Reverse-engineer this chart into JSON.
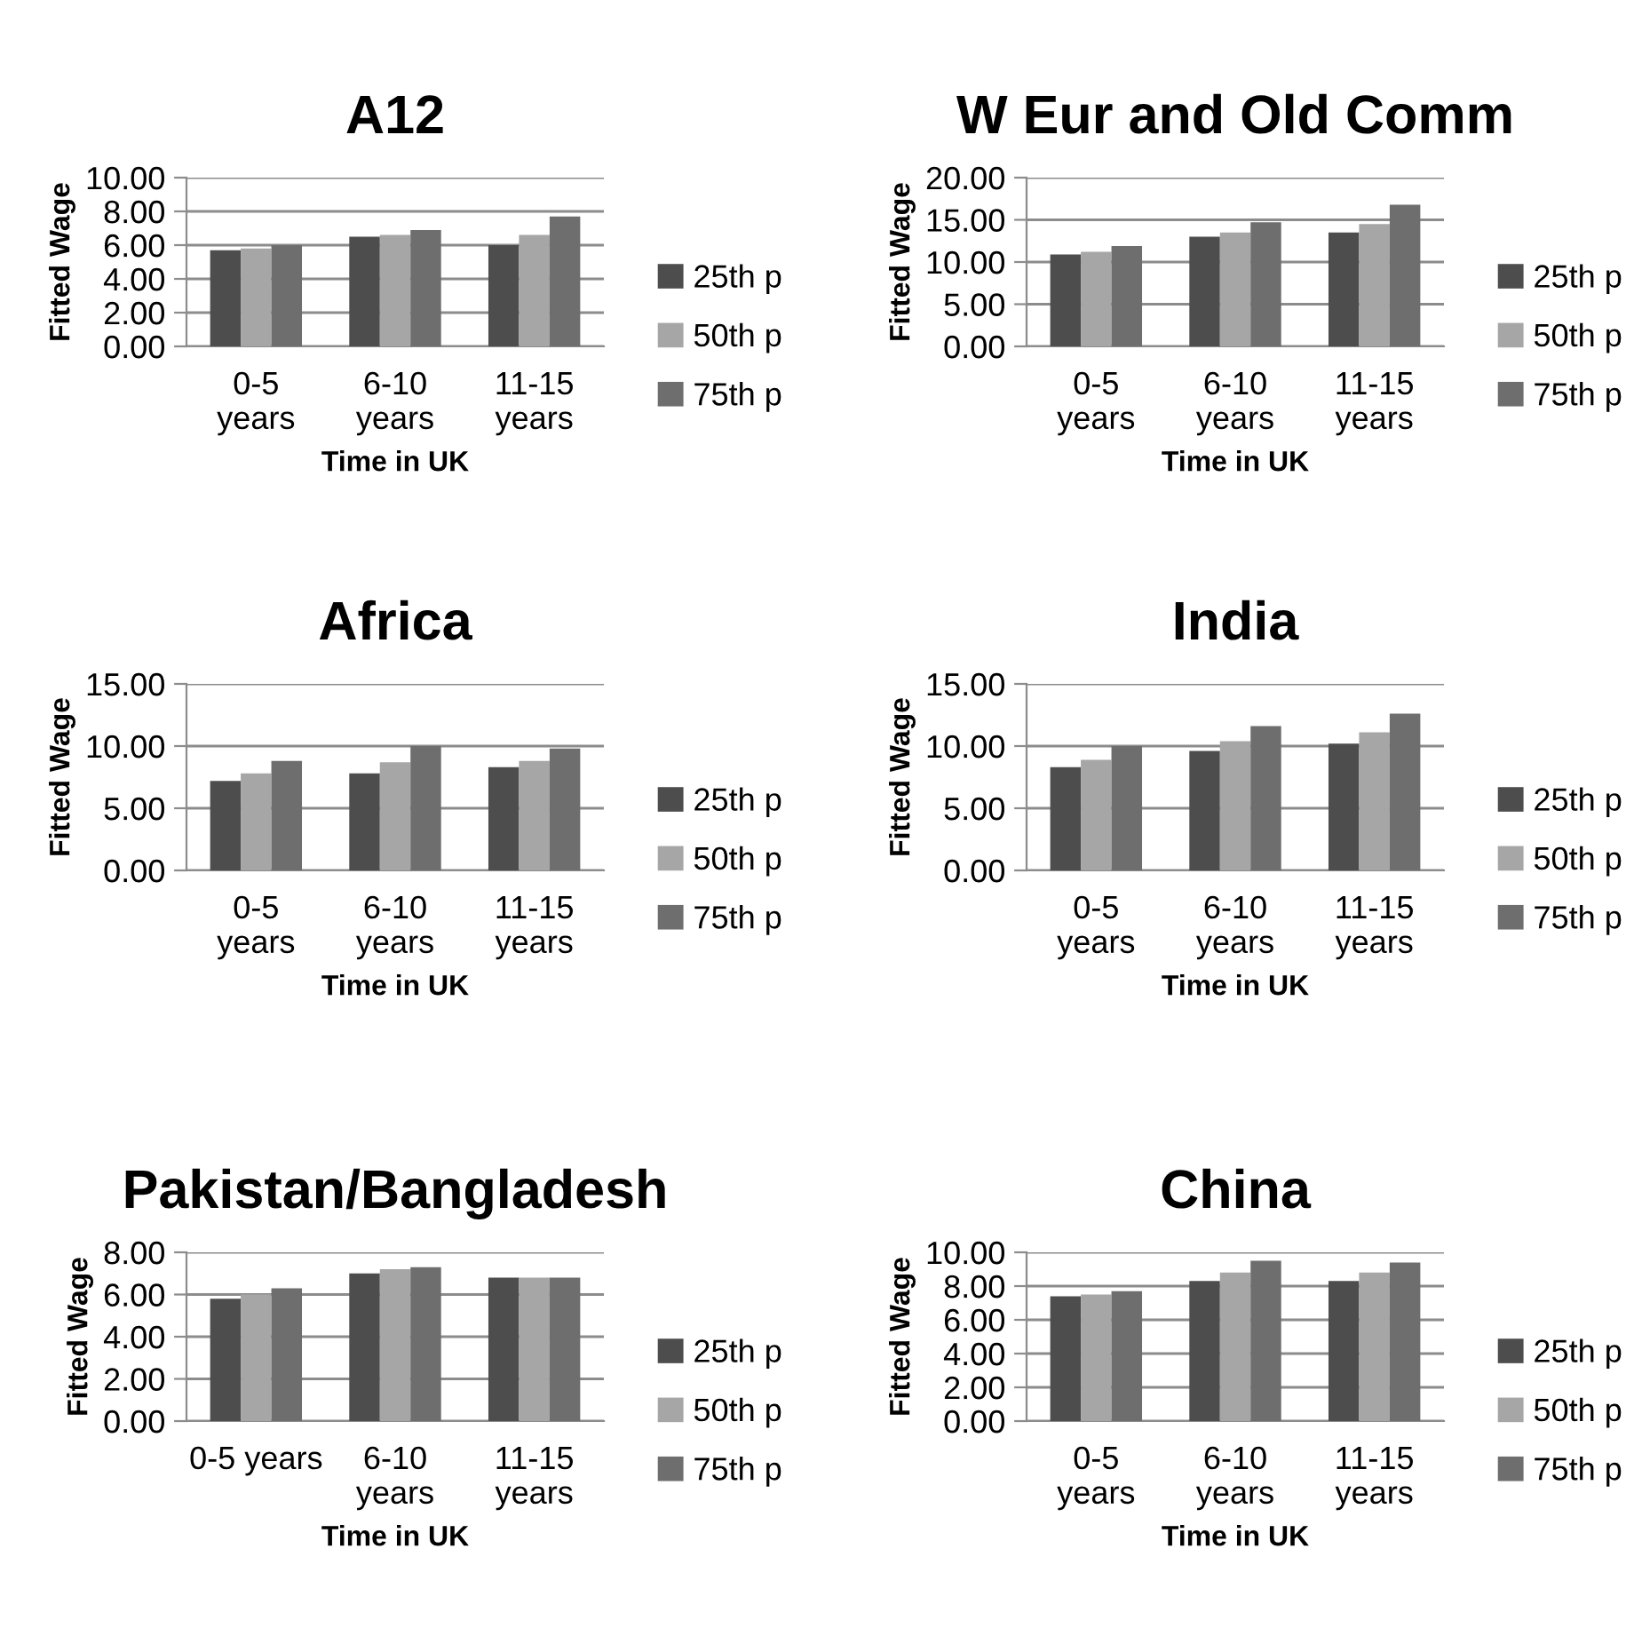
{
  "chart_data": [
    {
      "type": "bar",
      "title": "A12",
      "xlabel": "Time in UK",
      "ylabel": "Fitted Wage",
      "categories": [
        "0-5\nyears",
        "6-10\nyears",
        "11-15\nyears"
      ],
      "series": [
        {
          "name": "25th p",
          "color": "#4d4d4d",
          "values": [
            5.7,
            6.5,
            6.0
          ]
        },
        {
          "name": "50th p",
          "color": "#a6a6a6",
          "values": [
            5.8,
            6.6,
            6.6
          ]
        },
        {
          "name": "75th p",
          "color": "#6e6e6e",
          "values": [
            6.0,
            6.9,
            7.7
          ]
        }
      ],
      "ylim": [
        0,
        10
      ],
      "yticks": [
        {
          "value": 0,
          "label": "0.00"
        },
        {
          "value": 2,
          "label": "2.00"
        },
        {
          "value": 4,
          "label": "4.00"
        },
        {
          "value": 6,
          "label": "6.00"
        },
        {
          "value": 8,
          "label": "8.00"
        },
        {
          "value": 10,
          "label": "10.00"
        }
      ],
      "grid": "y",
      "legend": "right"
    },
    {
      "type": "bar",
      "title": "W Eur and Old Comm",
      "xlabel": "Time in UK",
      "ylabel": "Fitted Wage",
      "categories": [
        "0-5\nyears",
        "6-10\nyears",
        "11-15\nyears"
      ],
      "series": [
        {
          "name": "25th p",
          "color": "#4d4d4d",
          "values": [
            10.9,
            13.0,
            13.5
          ]
        },
        {
          "name": "50th p",
          "color": "#a6a6a6",
          "values": [
            11.2,
            13.5,
            14.5
          ]
        },
        {
          "name": "75th p",
          "color": "#6e6e6e",
          "values": [
            11.9,
            14.7,
            16.8
          ]
        }
      ],
      "ylim": [
        0,
        20
      ],
      "yticks": [
        {
          "value": 0,
          "label": "0.00"
        },
        {
          "value": 5,
          "label": "5.00"
        },
        {
          "value": 10,
          "label": "10.00"
        },
        {
          "value": 15,
          "label": "15.00"
        },
        {
          "value": 20,
          "label": "20.00"
        }
      ],
      "grid": "y",
      "legend": "right"
    },
    {
      "type": "bar",
      "title": "Africa",
      "xlabel": "Time in UK",
      "ylabel": "Fitted Wage",
      "categories": [
        "0-5\nyears",
        "6-10\nyears",
        "11-15\nyears"
      ],
      "series": [
        {
          "name": "25th p",
          "color": "#4d4d4d",
          "values": [
            7.2,
            7.8,
            8.3
          ]
        },
        {
          "name": "50th p",
          "color": "#a6a6a6",
          "values": [
            7.8,
            8.7,
            8.8
          ]
        },
        {
          "name": "75th p",
          "color": "#6e6e6e",
          "values": [
            8.8,
            10.0,
            9.8
          ]
        }
      ],
      "ylim": [
        0,
        15
      ],
      "yticks": [
        {
          "value": 0,
          "label": "0.00"
        },
        {
          "value": 5,
          "label": "5.00"
        },
        {
          "value": 10,
          "label": "10.00"
        },
        {
          "value": 15,
          "label": "15.00"
        }
      ],
      "grid": "y",
      "legend": "right"
    },
    {
      "type": "bar",
      "title": "India",
      "xlabel": "Time in UK",
      "ylabel": "Fitted Wage",
      "categories": [
        "0-5\nyears",
        "6-10\nyears",
        "11-15\nyears"
      ],
      "series": [
        {
          "name": "25th p",
          "color": "#4d4d4d",
          "values": [
            8.3,
            9.6,
            10.2
          ]
        },
        {
          "name": "50th p",
          "color": "#a6a6a6",
          "values": [
            8.9,
            10.4,
            11.1
          ]
        },
        {
          "name": "75th p",
          "color": "#6e6e6e",
          "values": [
            10.0,
            11.6,
            12.6
          ]
        }
      ],
      "ylim": [
        0,
        15
      ],
      "yticks": [
        {
          "value": 0,
          "label": "0.00"
        },
        {
          "value": 5,
          "label": "5.00"
        },
        {
          "value": 10,
          "label": "10.00"
        },
        {
          "value": 15,
          "label": "15.00"
        }
      ],
      "grid": "y",
      "legend": "right"
    },
    {
      "type": "bar",
      "title": "Pakistan/Bangladesh",
      "xlabel": "Time in UK",
      "ylabel": "Fitted Wage",
      "categories": [
        "0-5 years",
        "6-10\nyears",
        "11-15\nyears"
      ],
      "series": [
        {
          "name": "25th p",
          "color": "#4d4d4d",
          "values": [
            5.8,
            7.0,
            6.8
          ]
        },
        {
          "name": "50th p",
          "color": "#a6a6a6",
          "values": [
            6.0,
            7.2,
            6.8
          ]
        },
        {
          "name": "75th p",
          "color": "#6e6e6e",
          "values": [
            6.3,
            7.3,
            6.8
          ]
        }
      ],
      "ylim": [
        0,
        8
      ],
      "yticks": [
        {
          "value": 0,
          "label": "0.00"
        },
        {
          "value": 2,
          "label": "2.00"
        },
        {
          "value": 4,
          "label": "4.00"
        },
        {
          "value": 6,
          "label": "6.00"
        },
        {
          "value": 8,
          "label": "8.00"
        }
      ],
      "grid": "y",
      "legend": "right"
    },
    {
      "type": "bar",
      "title": "China",
      "xlabel": "Time in UK",
      "ylabel": "Fitted Wage",
      "categories": [
        "0-5\nyears",
        "6-10\nyears",
        "11-15\nyears"
      ],
      "series": [
        {
          "name": "25th p",
          "color": "#4d4d4d",
          "values": [
            7.4,
            8.3,
            8.3
          ]
        },
        {
          "name": "50th p",
          "color": "#a6a6a6",
          "values": [
            7.5,
            8.8,
            8.8
          ]
        },
        {
          "name": "75th p",
          "color": "#6e6e6e",
          "values": [
            7.7,
            9.5,
            9.4
          ]
        }
      ],
      "ylim": [
        0,
        10
      ],
      "yticks": [
        {
          "value": 0,
          "label": "0.00"
        },
        {
          "value": 2,
          "label": "2.00"
        },
        {
          "value": 4,
          "label": "4.00"
        },
        {
          "value": 6,
          "label": "6.00"
        },
        {
          "value": 8,
          "label": "8.00"
        },
        {
          "value": 10,
          "label": "10.00"
        }
      ],
      "grid": "y",
      "legend": "right"
    }
  ]
}
